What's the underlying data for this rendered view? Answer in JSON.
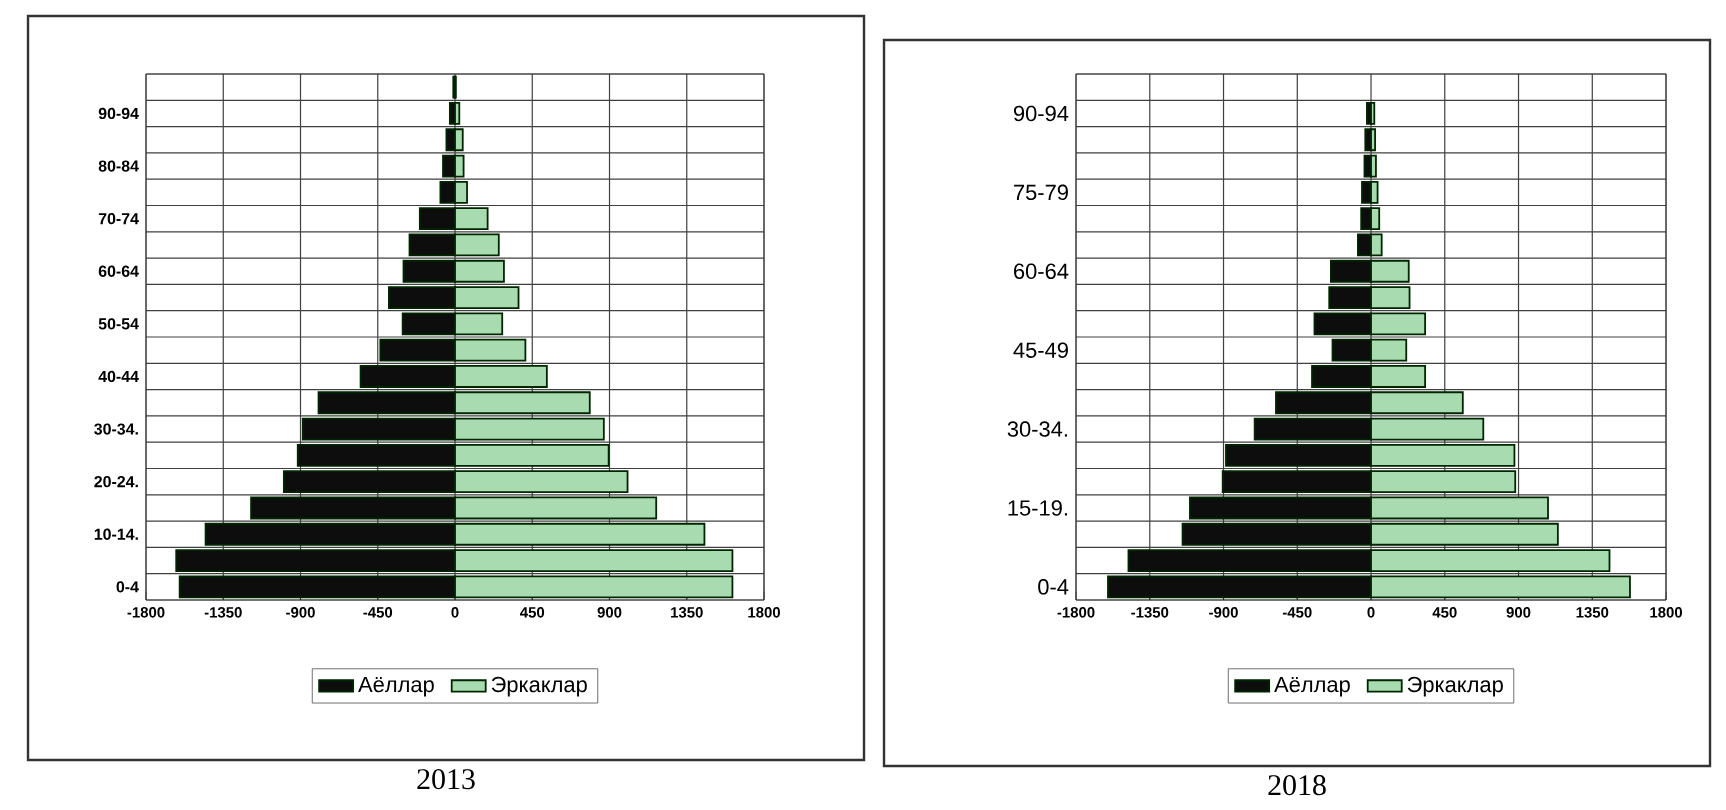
{
  "chart_data": [
    {
      "type": "bar",
      "orientation": "horizontal",
      "stacked": true,
      "title": "2013",
      "categories": [
        null,
        "90-94",
        null,
        "80-84",
        null,
        "70-74",
        null,
        "60-64",
        null,
        "50-54",
        null,
        "40-44",
        null,
        "30-34.",
        null,
        "20-24.",
        null,
        "10-14.",
        null,
        "0-4"
      ],
      "series": [
        {
          "name": "Аёллар",
          "color": "#0d0d0d",
          "values": [
            -10,
            -30,
            -50,
            -70,
            -85,
            -205,
            -265,
            -300,
            -385,
            -305,
            -435,
            -550,
            -795,
            -887,
            -916,
            -997,
            -1188,
            -1453,
            -1624,
            -1604
          ]
        },
        {
          "name": "Эркаклар",
          "color": "#a8dcb0",
          "values": [
            5,
            25,
            45,
            50,
            70,
            190,
            255,
            285,
            370,
            275,
            410,
            535,
            785,
            867,
            895,
            1005,
            1172,
            1453,
            1616,
            1616
          ]
        }
      ],
      "xlim": [
        -1800,
        1800
      ],
      "xticks": [
        -1800,
        -1350,
        -900,
        -450,
        0,
        450,
        900,
        1350,
        1800
      ],
      "grid": true,
      "legend": "bottom"
    },
    {
      "type": "bar",
      "orientation": "horizontal",
      "stacked": true,
      "title": "2018",
      "categories": [
        null,
        "90-94",
        null,
        null,
        "75-79",
        null,
        null,
        "60-64",
        null,
        null,
        "45-49",
        null,
        null,
        "30-34.",
        null,
        null,
        "15-19.",
        null,
        null,
        "0-4"
      ],
      "series": [
        {
          "name": "Аёллар",
          "color": "#0d0d0d",
          "values": [
            null,
            -25,
            -35,
            -40,
            -55,
            -60,
            -80,
            -245,
            -255,
            -345,
            -235,
            -360,
            -580,
            -710,
            -885,
            -905,
            -1105,
            -1150,
            -1480,
            -1605
          ]
        },
        {
          "name": "Эркаклар",
          "color": "#a8dcb0",
          "values": [
            null,
            20,
            25,
            30,
            40,
            50,
            65,
            230,
            235,
            330,
            215,
            330,
            560,
            685,
            875,
            880,
            1080,
            1140,
            1455,
            1580
          ]
        }
      ],
      "xlim": [
        -1800,
        1800
      ],
      "xticks": [
        -1800,
        -1350,
        -900,
        -450,
        0,
        450,
        900,
        1350,
        1800
      ],
      "grid": true,
      "legend": "bottom"
    }
  ]
}
